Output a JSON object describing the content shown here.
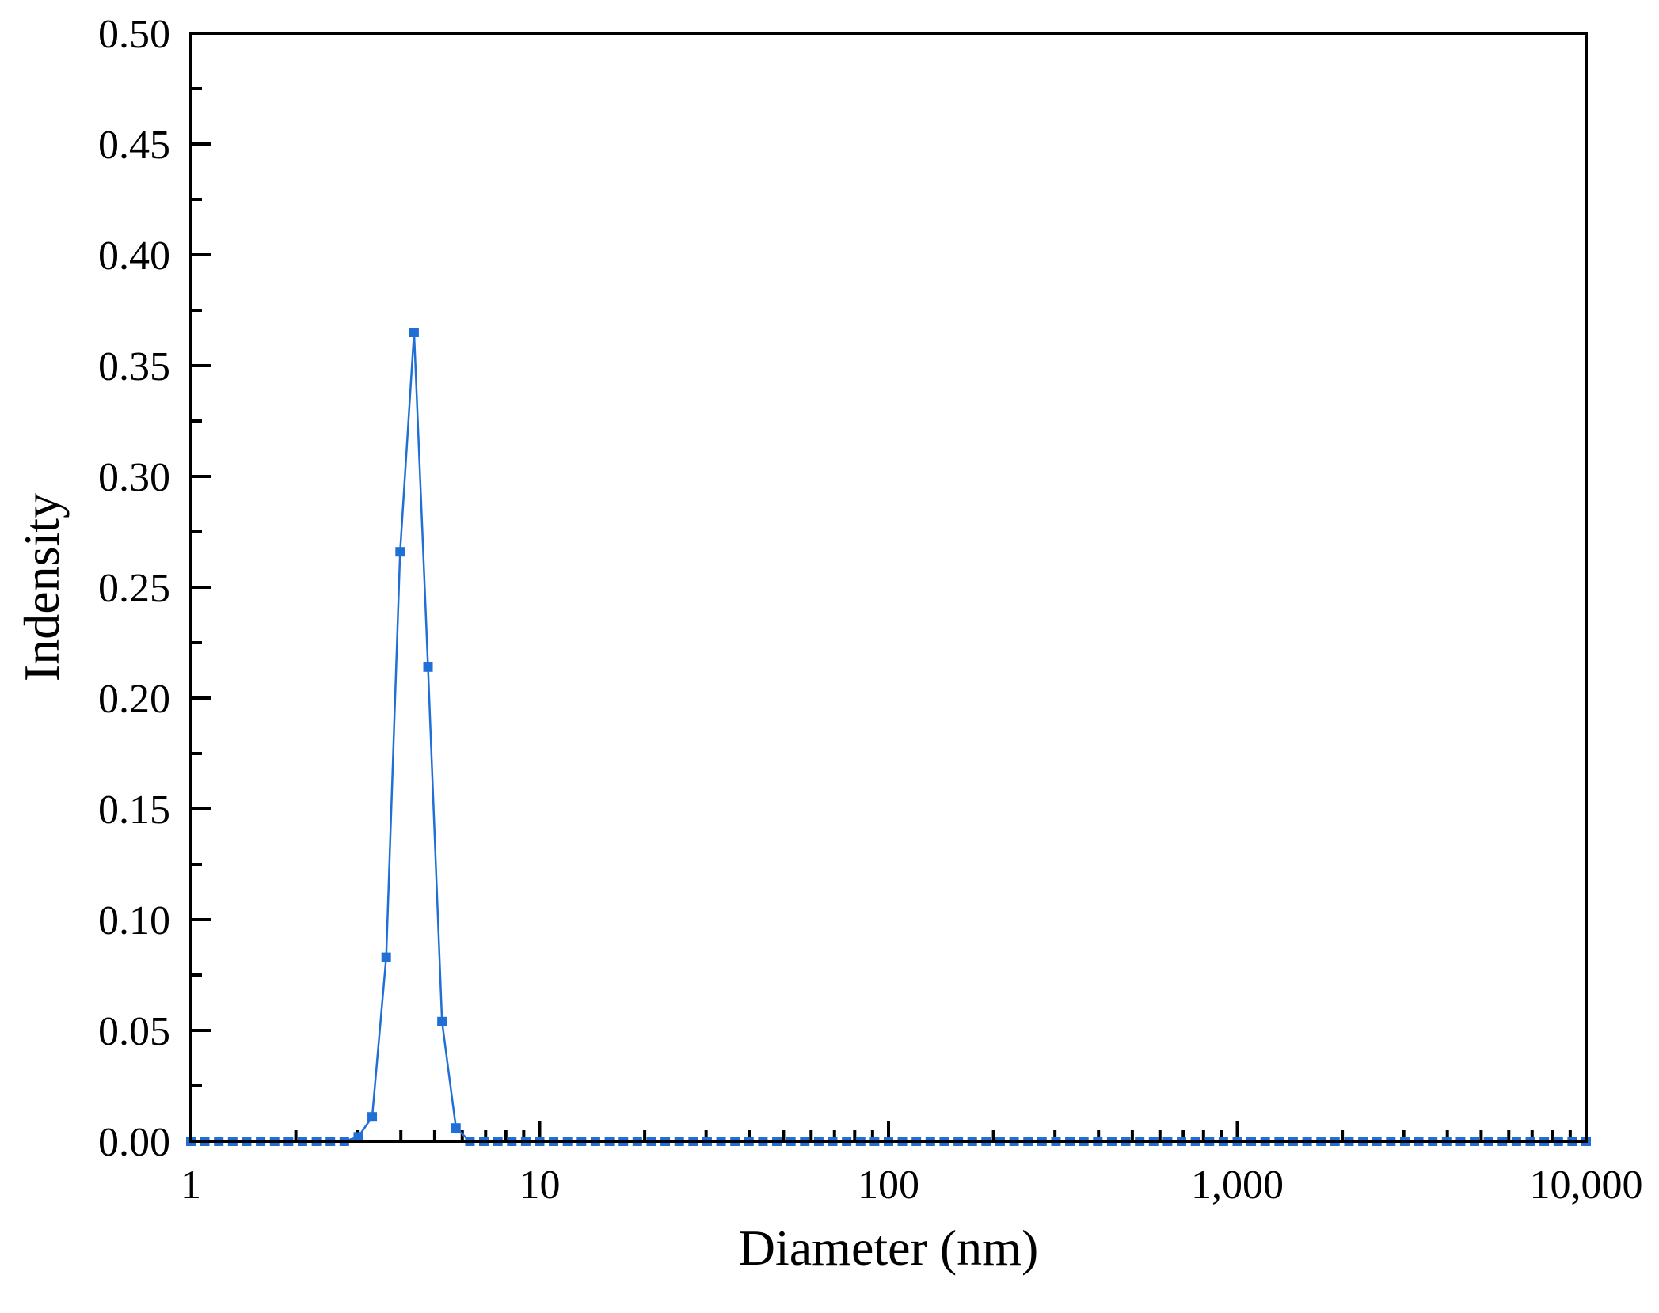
{
  "chart_data": {
    "type": "line",
    "xlabel": "Diameter (nm)",
    "ylabel": "Indensity",
    "xscale": "log",
    "xlim": [
      1,
      10000
    ],
    "ylim": [
      0,
      0.5
    ],
    "grid": false,
    "x_tick_labels": [
      "1",
      "10",
      "100",
      "1,000",
      "10,000"
    ],
    "x_tick_values": [
      1,
      10,
      100,
      1000,
      10000
    ],
    "y_tick_labels": [
      "0.00",
      "0.05",
      "0.10",
      "0.15",
      "0.20",
      "0.25",
      "0.30",
      "0.35",
      "0.40",
      "0.45",
      "0.50"
    ],
    "y_tick_values": [
      0,
      0.05,
      0.1,
      0.15,
      0.2,
      0.25,
      0.3,
      0.35,
      0.4,
      0.45,
      0.5
    ],
    "series_color": "#1f6fd6",
    "marker": "square",
    "series": [
      {
        "x": [
          1.0,
          1.096,
          1.202,
          1.318,
          1.445,
          1.585,
          1.738,
          1.905,
          2.089,
          2.291,
          2.512,
          2.754,
          3.02,
          3.311,
          3.631,
          3.981,
          4.365,
          4.786,
          5.248,
          5.754,
          6.31,
          6.918,
          7.586,
          8.318,
          9.12,
          10.0,
          10.96,
          12.02,
          13.18,
          14.45,
          15.85,
          17.38,
          19.05,
          20.89,
          22.91,
          25.12,
          27.54,
          30.2,
          33.11,
          36.31,
          39.81,
          43.65,
          47.86,
          52.48,
          57.54,
          63.1,
          69.18,
          75.86,
          83.18,
          91.2,
          100.0,
          109.6,
          120.2,
          131.8,
          144.5,
          158.5,
          173.8,
          190.5,
          208.9,
          229.1,
          251.2,
          275.4,
          302.0,
          331.1,
          363.1,
          398.1,
          436.5,
          478.6,
          524.8,
          575.4,
          631.0,
          691.8,
          758.6,
          831.8,
          912.0,
          1000.0,
          1096.0,
          1202.0,
          1318.0,
          1445.0,
          1585.0,
          1738.0,
          1905.0,
          2089.0,
          2291.0,
          2512.0,
          2754.0,
          3020.0,
          3311.0,
          3631.0,
          3981.0,
          4365.0,
          4786.0,
          5248.0,
          5754.0,
          6310.0,
          6918.0,
          7586.0,
          8318.0,
          9120.0,
          10000.0
        ],
        "values": [
          0,
          0,
          0,
          0,
          0,
          0,
          0,
          0,
          0,
          0,
          0,
          0,
          0.002,
          0.011,
          0.083,
          0.266,
          0.365,
          0.214,
          0.054,
          0.006,
          0,
          0,
          0,
          0,
          0,
          0,
          0,
          0,
          0,
          0,
          0,
          0,
          0,
          0,
          0,
          0,
          0,
          0,
          0,
          0,
          0,
          0,
          0,
          0,
          0,
          0,
          0,
          0,
          0,
          0,
          0,
          0,
          0,
          0,
          0,
          0,
          0,
          0,
          0,
          0,
          0,
          0,
          0,
          0,
          0,
          0,
          0,
          0,
          0,
          0,
          0,
          0,
          0,
          0,
          0,
          0,
          0,
          0,
          0,
          0,
          0,
          0,
          0,
          0,
          0,
          0,
          0,
          0,
          0,
          0,
          0,
          0,
          0,
          0,
          0,
          0,
          0,
          0,
          0,
          0,
          0
        ]
      }
    ]
  }
}
